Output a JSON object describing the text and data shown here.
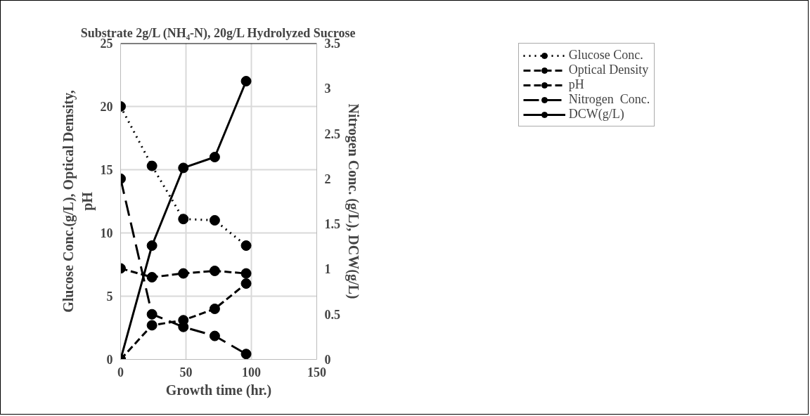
{
  "chart_data": {
    "type": "line",
    "title": "Substrate 2g/L (NH₄-N), 20g/L Hydrolyzed Sucrose",
    "xlabel": "Growth time (hr.)",
    "ylabel": "Glucose Conc.(g/L), Optical Demsity, pH",
    "y2label": "Nitrogen Conc. (g/L), DCW(g/L)",
    "x": [
      0,
      24,
      48,
      72,
      96
    ],
    "series": [
      {
        "name": "Glucose Conc.",
        "color": "#000000",
        "line_style": "dotted",
        "values": [
          20,
          15.3,
          11.1,
          11.0,
          9.0
        ]
      },
      {
        "name": "Optical Density",
        "color": "#000000",
        "line_style": "dashed",
        "values": [
          0,
          2.7,
          3.1,
          4.0,
          6.0
        ]
      },
      {
        "name": "pH",
        "color": "#000000",
        "line_style": "dashed",
        "values": [
          7.2,
          6.5,
          6.8,
          7.0,
          6.8
        ]
      },
      {
        "name": "Nitrogen  Conc.",
        "color": "#000000",
        "line_style": "dashed",
        "axis": "y2",
        "values": [
          2.0,
          0.5,
          0.36,
          0.26,
          0.06
        ]
      },
      {
        "name": "DCW(g/L)",
        "color": "#000000",
        "line_style": "solid",
        "axis": "y2",
        "values": [
          0,
          1.26,
          2.12,
          2.24,
          3.08
        ]
      }
    ],
    "xlim": [
      0,
      150
    ],
    "xticks": [
      0,
      50,
      100,
      150
    ],
    "ylim": [
      0,
      25
    ],
    "yticks": [
      0,
      5,
      10,
      15,
      20,
      25
    ],
    "y2lim": [
      0,
      3.5
    ],
    "y2ticks": [
      0,
      0.5,
      1,
      1.5,
      2,
      2.5,
      3,
      3.5
    ],
    "grid": true,
    "legend": "top right",
    "marker": "circle"
  }
}
